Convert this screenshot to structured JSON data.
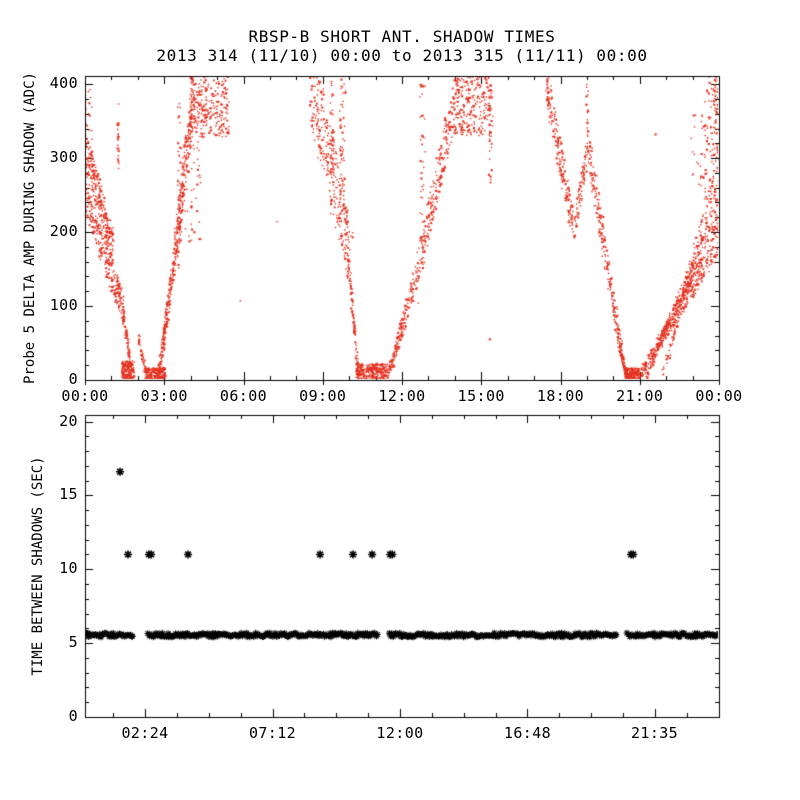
{
  "figure": {
    "title": "RBSP-B SHORT ANT. SHADOW TIMES",
    "subtitle": "2013 314 (11/10) 00:00 to 2013 315 (11/11) 00:00",
    "background_color": "#ffffff",
    "axis_color": "#000000"
  },
  "chart_data": [
    {
      "panel": "top",
      "type": "scatter",
      "title": "RBSP-B SHORT ANT. SHADOW TIMES",
      "subtitle": "2013 314 (11/10) 00:00 to 2013 315 (11/11) 00:00",
      "ylabel": "Probe 5 DELTA AMP DURING SHADOW (ADC)",
      "xlabel": "",
      "xlim_hours": [
        0,
        24
      ],
      "ylim": [
        0,
        411
      ],
      "grid": false,
      "x_major_ticks": [
        0,
        3,
        6,
        9,
        12,
        15,
        18,
        21,
        24
      ],
      "x_tick_labels": [
        "00:00",
        "03:00",
        "06:00",
        "09:00",
        "12:00",
        "15:00",
        "18:00",
        "21:00",
        "00:00"
      ],
      "x_minor_step": 1,
      "y_major_ticks": [
        0,
        100,
        200,
        300,
        400
      ],
      "y_tick_labels": [
        "0",
        "100",
        "200",
        "300",
        "400"
      ],
      "y_minor_step": 20,
      "point_color": "#e53220",
      "marker": "dot",
      "clusters": [
        {
          "kind": "blob",
          "t": [
            0.02,
            0.3
          ],
          "v": [
            325,
            395
          ],
          "n": 14
        },
        {
          "kind": "strand",
          "t": [
            0.0,
            1.05
          ],
          "v": [
            315,
            175
          ],
          "n": 270,
          "jt": 0.06,
          "jv": [
            26,
            26
          ]
        },
        {
          "kind": "strand",
          "t": [
            0.0,
            1.45
          ],
          "v": [
            252,
            95
          ],
          "n": 270,
          "jt": 0.07,
          "jv": [
            22,
            22
          ]
        },
        {
          "kind": "strand",
          "t": [
            1.42,
            1.72
          ],
          "v": [
            95,
            22
          ],
          "n": 80,
          "jt": 0.03,
          "jv": [
            12,
            8
          ]
        },
        {
          "kind": "vstrand",
          "t": 1.26,
          "v": [
            285,
            385
          ],
          "n": 22,
          "jt": 0.03
        },
        {
          "kind": "blob",
          "t": [
            1.4,
            1.87
          ],
          "v": [
            0,
            26
          ],
          "n": 180
        },
        {
          "kind": "blob",
          "t": [
            2.28,
            3.05
          ],
          "v": [
            0,
            17
          ],
          "n": 210
        },
        {
          "kind": "strand",
          "t": [
            2.02,
            2.32
          ],
          "v": [
            60,
            6
          ],
          "n": 45,
          "jt": 0.03,
          "jv": [
            10,
            6
          ]
        },
        {
          "kind": "strand",
          "t": [
            2.75,
            4.15
          ],
          "v": [
            4,
            408
          ],
          "n": 460,
          "jt": 0.04,
          "jv": [
            6,
            42
          ],
          "p": 1.15
        },
        {
          "kind": "blob",
          "t": [
            4.0,
            5.45
          ],
          "v": [
            328,
            410
          ],
          "n": 260
        },
        {
          "kind": "vstrand",
          "t": 3.55,
          "v": [
            130,
            400
          ],
          "n": 30,
          "jt": 0.05
        },
        {
          "kind": "blob",
          "t": [
            3.6,
            4.4
          ],
          "v": [
            185,
            330
          ],
          "n": 55
        },
        {
          "kind": "dot",
          "t": 5.88,
          "v": 107
        },
        {
          "kind": "dot",
          "t": 7.27,
          "v": 214
        },
        {
          "kind": "strand",
          "t": [
            8.55,
            10.05
          ],
          "v": [
            405,
            168
          ],
          "n": 290,
          "jt": 0.1,
          "jv": [
            55,
            40
          ]
        },
        {
          "kind": "vstrand",
          "t": 9.75,
          "v": [
            230,
            408
          ],
          "n": 60,
          "jt": 0.12
        },
        {
          "kind": "vstrand",
          "t": 9.35,
          "v": [
            280,
            408
          ],
          "n": 40,
          "jt": 0.08
        },
        {
          "kind": "strand",
          "t": [
            9.95,
            10.35
          ],
          "v": [
            170,
            8
          ],
          "n": 90,
          "jt": 0.03,
          "jv": [
            14,
            8
          ]
        },
        {
          "kind": "blob",
          "t": [
            10.25,
            11.45
          ],
          "v": [
            0,
            22
          ],
          "n": 280
        },
        {
          "kind": "strand",
          "t": [
            11.42,
            14.15
          ],
          "v": [
            3,
            400
          ],
          "n": 430,
          "jt": 0.05,
          "jv": [
            6,
            40
          ],
          "p": 1.15
        },
        {
          "kind": "vstrand",
          "t": 12.78,
          "v": [
            150,
            400
          ],
          "n": 45,
          "jt": 0.1
        },
        {
          "kind": "blob",
          "t": [
            14.0,
            15.45
          ],
          "v": [
            330,
            410
          ],
          "n": 240
        },
        {
          "kind": "vstrand",
          "t": 15.35,
          "v": [
            250,
            400
          ],
          "n": 25,
          "jt": 0.06
        },
        {
          "kind": "dot",
          "t": 12.62,
          "v": 104
        },
        {
          "kind": "dot",
          "t": 15.33,
          "v": 55
        },
        {
          "kind": "strand",
          "t": [
            17.45,
            18.5
          ],
          "v": [
            402,
            205
          ],
          "n": 200,
          "jt": 0.05,
          "jv": [
            24,
            24
          ]
        },
        {
          "kind": "strand",
          "t": [
            18.5,
            19.05
          ],
          "v": [
            200,
            318
          ],
          "n": 90,
          "jt": 0.04,
          "jv": [
            20,
            20
          ]
        },
        {
          "kind": "vstrand",
          "t": 19.02,
          "v": [
            330,
            408
          ],
          "n": 18,
          "jt": 0.04
        },
        {
          "kind": "strand",
          "t": [
            19.05,
            20.3
          ],
          "v": [
            315,
            40
          ],
          "n": 230,
          "jt": 0.05,
          "jv": [
            30,
            12
          ]
        },
        {
          "kind": "strand",
          "t": [
            20.25,
            20.5
          ],
          "v": [
            45,
            4
          ],
          "n": 60,
          "jt": 0.02,
          "jv": [
            8,
            6
          ]
        },
        {
          "kind": "blob",
          "t": [
            20.42,
            20.98
          ],
          "v": [
            0,
            16
          ],
          "n": 180
        },
        {
          "kind": "strand",
          "t": [
            20.95,
            24.0
          ],
          "v": [
            3,
            190
          ],
          "n": 380,
          "jt": 0.05,
          "jv": [
            6,
            22
          ]
        },
        {
          "kind": "strand",
          "t": [
            21.25,
            24.0
          ],
          "v": [
            5,
            235
          ],
          "n": 280,
          "jt": 0.05,
          "jv": [
            5,
            20
          ]
        },
        {
          "kind": "strand",
          "t": [
            21.9,
            24.0
          ],
          "v": [
            10,
            290
          ],
          "n": 160,
          "jt": 0.05,
          "jv": [
            5,
            25
          ]
        },
        {
          "kind": "blob",
          "t": [
            22.9,
            23.5
          ],
          "v": [
            250,
            360
          ],
          "n": 25
        },
        {
          "kind": "blob",
          "t": [
            23.45,
            24.0
          ],
          "v": [
            240,
            410
          ],
          "n": 85
        },
        {
          "kind": "vstrand",
          "t": 23.9,
          "v": [
            330,
            411
          ],
          "n": 30,
          "jt": 0.08
        },
        {
          "kind": "dot",
          "t": 21.6,
          "v": 332
        }
      ]
    },
    {
      "panel": "bottom",
      "type": "scatter",
      "ylabel": "TIME BETWEEN SHADOWS (SEC)",
      "xlabel": "",
      "xlim_hours": [
        0.14,
        24.01
      ],
      "ylim": [
        0,
        20.44
      ],
      "grid": false,
      "x_major_ticks": [
        2.4,
        7.2,
        12,
        16.8,
        21.583
      ],
      "x_tick_labels": [
        "02:24",
        "07:12",
        "12:00",
        "16:48",
        "21:35"
      ],
      "x_minor_step": 1.2,
      "y_major_ticks": [
        0,
        5,
        10,
        15,
        20
      ],
      "y_tick_labels": [
        "0",
        "5",
        "10",
        "15",
        "20"
      ],
      "y_minor_step": 1,
      "point_color": "#000000",
      "marker": "asterisk",
      "band": {
        "segments_hours": [
          [
            0.14,
            1.95
          ],
          [
            2.51,
            11.17
          ],
          [
            11.59,
            20.17
          ],
          [
            20.55,
            24.01
          ]
        ],
        "value_sec": 5.55,
        "jitter": 0.28,
        "step_hours": 0.05
      },
      "outliers": [
        [
          1.46,
          16.6
        ],
        [
          1.76,
          11.0
        ],
        [
          2.55,
          11.0
        ],
        [
          2.63,
          11.0
        ],
        [
          4.02,
          11.0
        ],
        [
          8.99,
          11.0
        ],
        [
          10.23,
          11.0
        ],
        [
          10.95,
          11.0
        ],
        [
          11.63,
          11.0
        ],
        [
          11.71,
          11.0
        ],
        [
          20.7,
          11.0
        ],
        [
          20.78,
          11.0
        ]
      ]
    }
  ]
}
